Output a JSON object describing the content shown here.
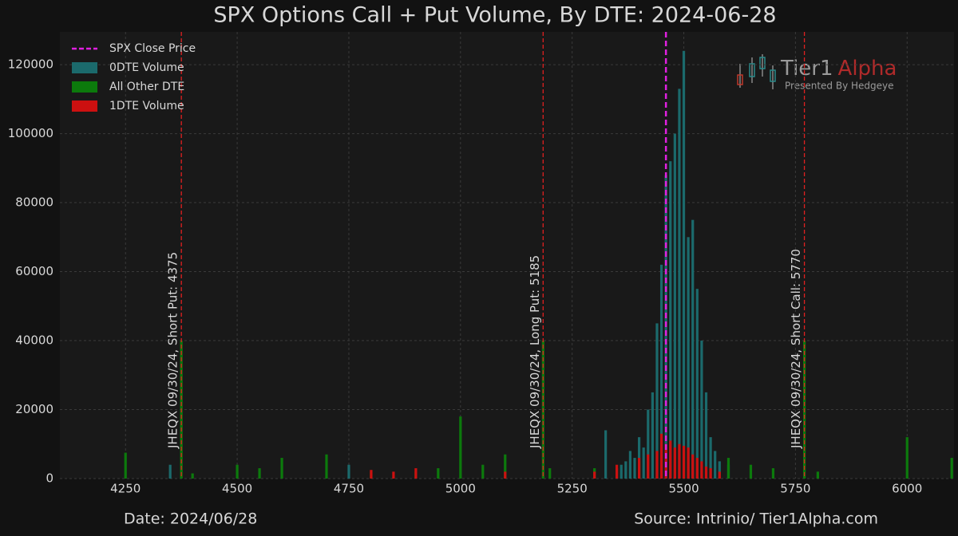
{
  "chart_data": {
    "type": "bar",
    "title": "SPX Options Call + Put Volume, By DTE: 2024-06-28",
    "xlim": [
      4103,
      6105
    ],
    "ylim": [
      0,
      129500
    ],
    "xticks": [
      4250,
      4500,
      4750,
      5000,
      5250,
      5500,
      5750,
      6000
    ],
    "yticks": [
      0,
      20000,
      40000,
      60000,
      80000,
      100000,
      120000
    ],
    "grid": true,
    "legend": "upper-left",
    "close_line": {
      "name": "SPX Close Price",
      "x": 5460,
      "color": "#e020e0"
    },
    "series": [
      {
        "name": "0DTE Volume",
        "color": "#1b6a6c",
        "x": [
          4350,
          4750,
          5325,
          5350,
          5360,
          5370,
          5380,
          5390,
          5400,
          5410,
          5420,
          5430,
          5440,
          5450,
          5460,
          5470,
          5480,
          5490,
          5500,
          5510,
          5520,
          5530,
          5540,
          5550,
          5560,
          5570,
          5580,
          5600
        ],
        "values": [
          4000,
          4000,
          14000,
          3000,
          4000,
          5000,
          8000,
          6000,
          12000,
          9000,
          20000,
          25000,
          45000,
          62000,
          88000,
          92000,
          100000,
          113000,
          124000,
          70000,
          75000,
          55000,
          40000,
          25000,
          12000,
          8000,
          5000,
          4000
        ]
      },
      {
        "name": "All Other DTE",
        "color": "#0c7a0c",
        "x": [
          4250,
          4375,
          4400,
          4500,
          4550,
          4600,
          4700,
          4800,
          4900,
          4950,
          5000,
          5050,
          5100,
          5185,
          5200,
          5300,
          5400,
          5500,
          5600,
          5650,
          5700,
          5770,
          5800,
          6000,
          6100
        ],
        "values": [
          7500,
          40000,
          1500,
          4000,
          3000,
          6000,
          7000,
          2000,
          2000,
          3000,
          18000,
          4000,
          7000,
          40000,
          3000,
          3000,
          5000,
          8000,
          6000,
          4000,
          3000,
          40000,
          2000,
          12000,
          6000
        ]
      },
      {
        "name": "1DTE Volume",
        "color": "#cc1010",
        "x": [
          4800,
          4850,
          4900,
          5100,
          5300,
          5350,
          5400,
          5420,
          5440,
          5450,
          5460,
          5470,
          5480,
          5490,
          5500,
          5510,
          5520,
          5530,
          5540,
          5550,
          5560,
          5580
        ],
        "values": [
          2500,
          2000,
          3000,
          2000,
          2000,
          4000,
          6000,
          7000,
          8000,
          13000,
          10000,
          11000,
          9000,
          10000,
          9500,
          9000,
          7000,
          6000,
          5000,
          3500,
          3000,
          2000
        ]
      }
    ],
    "annotations": [
      {
        "x": 4375,
        "label": "JHEQX 09/30/24, Short Put: 4375"
      },
      {
        "x": 5185,
        "label": "JHEQX 09/30/24, Long Put: 5185"
      },
      {
        "x": 5770,
        "label": "JHEQX 09/30/24, Short Call: 5770"
      }
    ],
    "logo": {
      "name": "Tier1",
      "accent": "Alpha",
      "tagline": "Presented By Hedgeye"
    },
    "footer_left": "Date: 2024/06/28",
    "footer_right": "Source: Intrinio/ Tier1Alpha.com"
  }
}
